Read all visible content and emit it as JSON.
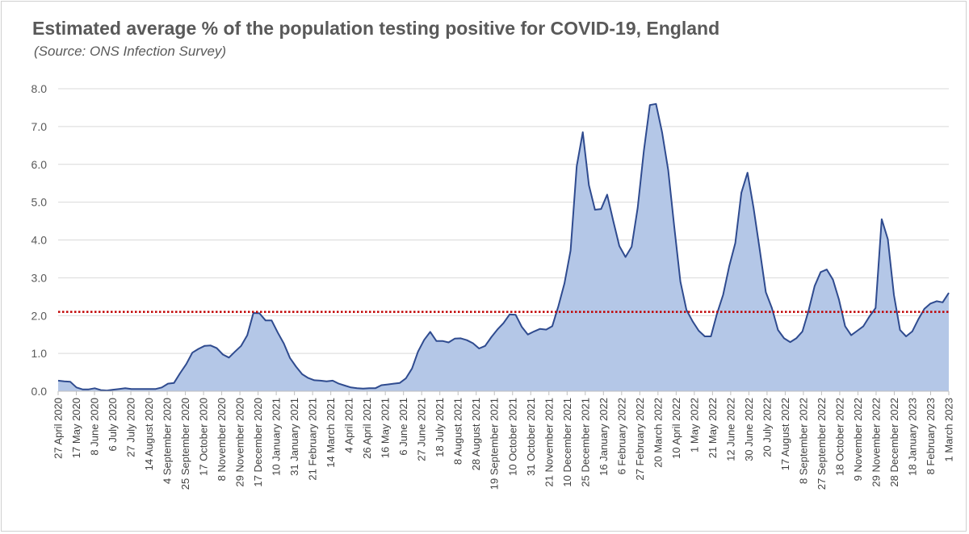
{
  "chart_data": {
    "type": "area",
    "title": "Estimated average % of the population testing positive for COVID-19, England",
    "subtitle": "(Source: ONS Infection Survey)",
    "xlabel": "",
    "ylabel": "",
    "ylim": [
      0,
      8
    ],
    "yticks": [
      "0.0",
      "1.0",
      "2.0",
      "3.0",
      "4.0",
      "5.0",
      "6.0",
      "7.0",
      "8.0"
    ],
    "grid": true,
    "reference_line": {
      "value": 2.1,
      "color": "#c00000",
      "style": "dotted"
    },
    "area_fill": "#b4c7e7",
    "line_color": "#2f4b8f",
    "tick_labels": [
      "27 April 2020",
      "17 May 2020",
      "8 June 2020",
      "6 July 2020",
      "27 July 2020",
      "14 August 2020",
      "4 September 2020",
      "25 September 2020",
      "17 October 2020",
      "8 November 2020",
      "29 November 2020",
      "17 December 2020",
      "10 January 2021",
      "31 January 2021",
      "21 February 2021",
      "14 March 2021",
      "4 April 2021",
      "26 April 2021",
      "16 May 2021",
      "6 June 2021",
      "27 June 2021",
      "18 July 2021",
      "8 August 2021",
      "28 August 2021",
      "19 September 2021",
      "10 October 2021",
      "31 October 2021",
      "21 November 2021",
      "10 December 2021",
      "25 December 2021",
      "16 January 2022",
      "6 February 2022",
      "27 February 2022",
      "20 March 2022",
      "10 April 2022",
      "1 May 2022",
      "21 May 2022",
      "12 June 2022",
      "30 June 2022",
      "20 July 2022",
      "17 August 2022",
      "8 September 2022",
      "27 September 2022",
      "18 October 2022",
      "9 November 2022",
      "29 November 2022",
      "28 December 2022",
      "18 January 2023",
      "8 February 2023",
      "1 March 2023"
    ],
    "values": [
      0.28,
      0.26,
      0.25,
      0.1,
      0.05,
      0.05,
      0.08,
      0.03,
      0.02,
      0.04,
      0.06,
      0.08,
      0.06,
      0.06,
      0.06,
      0.06,
      0.06,
      0.1,
      0.2,
      0.22,
      0.48,
      0.72,
      1.02,
      1.12,
      1.2,
      1.21,
      1.14,
      0.97,
      0.89,
      1.05,
      1.2,
      1.48,
      2.07,
      2.06,
      1.87,
      1.87,
      1.55,
      1.26,
      0.88,
      0.65,
      0.45,
      0.35,
      0.29,
      0.28,
      0.26,
      0.28,
      0.2,
      0.15,
      0.1,
      0.08,
      0.07,
      0.08,
      0.08,
      0.16,
      0.18,
      0.2,
      0.22,
      0.34,
      0.6,
      1.05,
      1.36,
      1.57,
      1.33,
      1.33,
      1.29,
      1.39,
      1.4,
      1.35,
      1.27,
      1.13,
      1.2,
      1.43,
      1.63,
      1.8,
      2.03,
      2.02,
      1.7,
      1.5,
      1.58,
      1.65,
      1.63,
      1.72,
      2.25,
      2.85,
      3.72,
      5.95,
      6.85,
      5.45,
      4.8,
      4.82,
      5.2,
      4.5,
      3.84,
      3.55,
      3.82,
      4.85,
      6.35,
      7.57,
      7.6,
      6.85,
      5.85,
      4.35,
      2.9,
      2.15,
      1.85,
      1.6,
      1.45,
      1.45,
      2.05,
      2.55,
      3.3,
      3.92,
      5.25,
      5.78,
      4.85,
      3.75,
      2.62,
      2.2,
      1.62,
      1.4,
      1.3,
      1.4,
      1.58,
      2.12,
      2.78,
      3.15,
      3.22,
      2.95,
      2.42,
      1.72,
      1.48,
      1.6,
      1.72,
      1.98,
      2.2,
      4.55,
      4.02,
      2.55,
      1.62,
      1.45,
      1.58,
      1.9,
      2.18,
      2.32,
      2.38,
      2.35,
      2.6
    ]
  }
}
